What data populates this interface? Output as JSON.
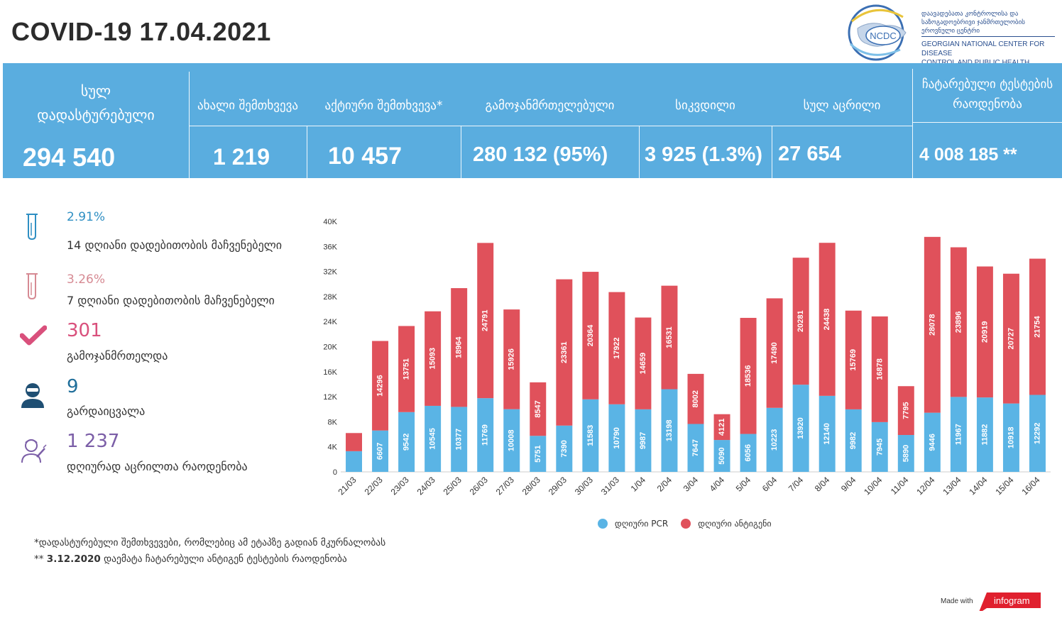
{
  "header": {
    "title": "COVID-19 17.04.2021",
    "logo": {
      "acronym": "NCDC",
      "name_geo": "დაავადებათა კონტროლისა და საზოგადოებრივი ჯანმრთელობის ეროვნული ცენტრი",
      "name_en_1": "GEORGIAN NATIONAL CENTER FOR DISEASE",
      "name_en_2": "CONTROL AND PUBLIC HEALTH"
    }
  },
  "stats": {
    "total_label_1": "სულ",
    "total_label_2": "დადასტურებული",
    "total_value": "294 540",
    "new_label": "ახალი შემთხვევა",
    "new_value": "1 219",
    "active_label": "აქტიური შემთხვევა*",
    "active_value": "10 457",
    "recovered_label": "გამოჯანმრთელებული",
    "recovered_value": "280 132 (95%)",
    "deaths_label": "სიკვდილი",
    "deaths_value": "3 925 (1.3%)",
    "vaccinated_label": "სულ აცრილი",
    "vaccinated_value": "27 654",
    "tests_label_1": "ჩატარებული ტესტების",
    "tests_label_2": "რაოდენობა",
    "tests_value": "4 008 185 **"
  },
  "indicators": {
    "positivity14_value": "2.91%",
    "positivity14_label": "14  დღიანი დადებითობის მაჩვენებელი",
    "positivity7_value": "3.26%",
    "positivity7_label": "7 დღიანი დადებითობის მაჩვენებელი",
    "recovered_value": "301",
    "recovered_label": "გამოჯანმრთელდა",
    "died_value": "9",
    "died_label": "გარდაიცვალა",
    "vaccinated_value": "1 237",
    "vaccinated_label": " დღიურად აცრილთა რაოდენობა"
  },
  "colors": {
    "band": "#5aaddf",
    "pcr": "#5ab4e5",
    "antigen": "#e0515b",
    "positivity14": "#2f8fc3",
    "positivity7": "#d68a93",
    "recovered": "#d9507c",
    "died": "#1f6e9a",
    "vaccinated": "#7b5ea7"
  },
  "footnotes": {
    "note1": "*დადასტურებული შემთხვევები, რომლებიც ამ ეტაპზე გადიან მკურნალობას",
    "note2_prefix": "** ",
    "note2_date": "3.12.2020",
    "note2_text": " დაემატა ჩატარებული ანტიგენ ტესტების რაოდენობა"
  },
  "footer": {
    "made_with": "Made with",
    "brand": "infogram"
  },
  "chart_data": {
    "type": "bar",
    "stacked": true,
    "categories": [
      "21/03",
      "22/03",
      "23/03",
      "24/03",
      "25/03",
      "26/03",
      "27/03",
      "28/03",
      "29/03",
      "30/03",
      "31/03",
      "1/04",
      "2/04",
      "3/04",
      "4/04",
      "5/04",
      "6/04",
      "7/04",
      "8/04",
      "9/04",
      "10/04",
      "11/04",
      "12/04",
      "13/04",
      "14/04",
      "15/04",
      "16/04"
    ],
    "series": [
      {
        "name": "დღიური PCR",
        "values": [
          3300,
          6607,
          9542,
          10545,
          10377,
          11769,
          10008,
          5751,
          7390,
          11583,
          10790,
          9987,
          13198,
          7647,
          5090,
          6056,
          10223,
          13920,
          12140,
          9982,
          7945,
          5890,
          9446,
          11967,
          11882,
          10918,
          12292
        ]
      },
      {
        "name": "დღიური ანტიგენი",
        "values": [
          2900,
          14296,
          13751,
          15093,
          18964,
          24791,
          15926,
          8547,
          23361,
          20364,
          17922,
          14659,
          16531,
          8002,
          4121,
          18536,
          17490,
          20281,
          24438,
          15769,
          16878,
          7795,
          28078,
          23896,
          20919,
          20727,
          21754
        ]
      }
    ],
    "value_labels": [
      [
        "",
        ""
      ],
      [
        "6607",
        "14296"
      ],
      [
        "9542",
        "13751"
      ],
      [
        "10545",
        "15093"
      ],
      [
        "10377",
        "18964"
      ],
      [
        "11769",
        "24791"
      ],
      [
        "10008",
        "15926"
      ],
      [
        "5751",
        "8547"
      ],
      [
        "7390",
        "23361"
      ],
      [
        "11583",
        "20364"
      ],
      [
        "10790",
        "17922"
      ],
      [
        "9987",
        "14659"
      ],
      [
        "13198",
        "16531"
      ],
      [
        "7647",
        "8002"
      ],
      [
        "5090",
        "4121"
      ],
      [
        "6056",
        "18536"
      ],
      [
        "10223",
        "17490"
      ],
      [
        "13920",
        "20281"
      ],
      [
        "12140",
        "24438"
      ],
      [
        "9982",
        "15769"
      ],
      [
        "7945",
        "16878"
      ],
      [
        "5890",
        "7795"
      ],
      [
        "9446",
        "28078"
      ],
      [
        "11967",
        "23896"
      ],
      [
        "11882",
        "20919"
      ],
      [
        "10918",
        "20727"
      ],
      [
        "12292",
        "21754"
      ]
    ],
    "yticks": [
      0,
      4000,
      8000,
      12000,
      16000,
      20000,
      24000,
      28000,
      32000,
      36000,
      40000
    ],
    "ytick_labels": [
      "0",
      "4K",
      "8K",
      "12K",
      "16K",
      "20K",
      "24K",
      "28K",
      "32K",
      "36K",
      "40K"
    ],
    "ylim": [
      0,
      40000
    ],
    "grid": false,
    "legend": "bottom"
  }
}
